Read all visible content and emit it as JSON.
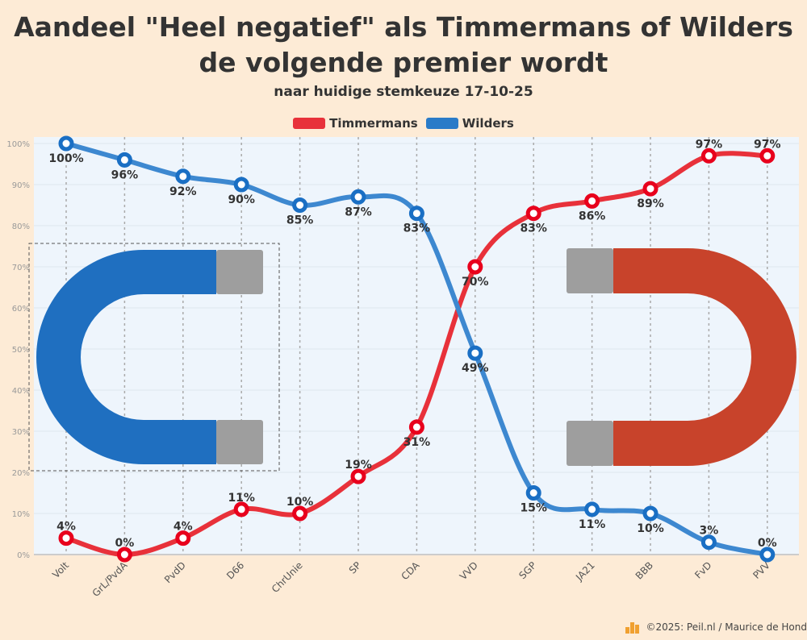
{
  "chart_data": {
    "type": "line",
    "title": "Aandeel \"Heel negatief\" als Timmermans of Wilders de volgende premier wordt",
    "subtitle": "naar huidige stemkeuze 17-10-25",
    "categories": [
      "Volt",
      "GrL/PvdA",
      "PvdD",
      "D66",
      "ChrUnie",
      "SP",
      "CDA",
      "VVD",
      "SGP",
      "JA21",
      "BBB",
      "FvD",
      "PVV"
    ],
    "series": [
      {
        "name": "Timmermans",
        "color": "#e8313a",
        "values": [
          4,
          0,
          4,
          11,
          10,
          19,
          31,
          70,
          83,
          86,
          89,
          97,
          97
        ]
      },
      {
        "name": "Wilders",
        "color": "#3d88d0",
        "values": [
          100,
          96,
          92,
          90,
          85,
          87,
          83,
          49,
          15,
          11,
          10,
          3,
          0
        ]
      }
    ],
    "yticks": [
      "0%",
      "10%",
      "20%",
      "30%",
      "40%",
      "50%",
      "60%",
      "70%",
      "80%",
      "90%",
      "100%"
    ],
    "ylim": [
      0,
      100
    ],
    "grid": true,
    "legend": "top-center",
    "decorations": {
      "left_magnet_color": "#1f6fc0",
      "right_magnet_color": "#c8432b",
      "magnet_tip_color": "#9e9e9e"
    }
  },
  "footer": "©2025: Peil.nl / Maurice de Hond"
}
